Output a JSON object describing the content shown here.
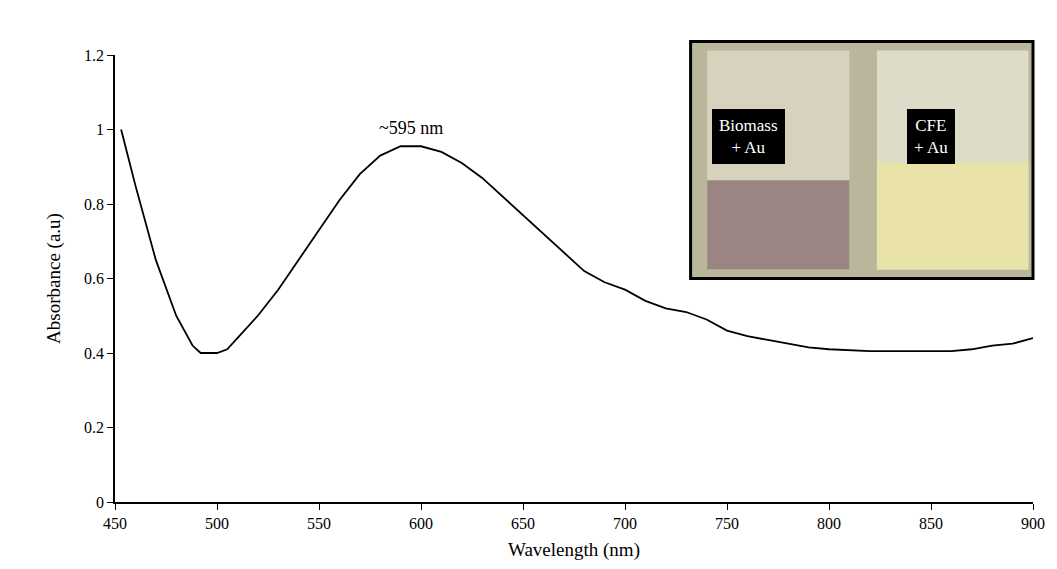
{
  "chart_data": {
    "type": "line",
    "x_label": "Wavelength (nm)",
    "y_label": "Absorbance (a.u)",
    "x": [
      453,
      460,
      470,
      480,
      488,
      492,
      500,
      505,
      510,
      520,
      530,
      540,
      550,
      560,
      570,
      580,
      590,
      600,
      610,
      620,
      630,
      640,
      650,
      660,
      670,
      680,
      690,
      700,
      710,
      720,
      730,
      740,
      750,
      760,
      770,
      780,
      790,
      800,
      820,
      840,
      860,
      870,
      880,
      890,
      900
    ],
    "values": [
      1.0,
      0.85,
      0.65,
      0.5,
      0.42,
      0.4,
      0.4,
      0.41,
      0.44,
      0.5,
      0.57,
      0.65,
      0.73,
      0.81,
      0.88,
      0.93,
      0.955,
      0.955,
      0.94,
      0.91,
      0.87,
      0.82,
      0.77,
      0.72,
      0.67,
      0.62,
      0.59,
      0.57,
      0.54,
      0.52,
      0.51,
      0.49,
      0.46,
      0.445,
      0.435,
      0.425,
      0.415,
      0.41,
      0.405,
      0.405,
      0.405,
      0.41,
      0.42,
      0.425,
      0.44
    ],
    "color": "#000000",
    "xlim": [
      450,
      900
    ],
    "xticks": [
      450,
      500,
      550,
      600,
      650,
      700,
      750,
      800,
      850,
      900
    ],
    "ylim": [
      0,
      1.2
    ],
    "yticks": [
      0,
      0.2,
      0.4,
      0.6,
      0.8,
      1,
      1.2
    ],
    "grid": false,
    "annotations": [
      {
        "text": "~595 nm",
        "x": 595,
        "y": 0.96
      }
    ],
    "inset_labels": [
      "Biomass + Au",
      "CFE + Au"
    ]
  }
}
